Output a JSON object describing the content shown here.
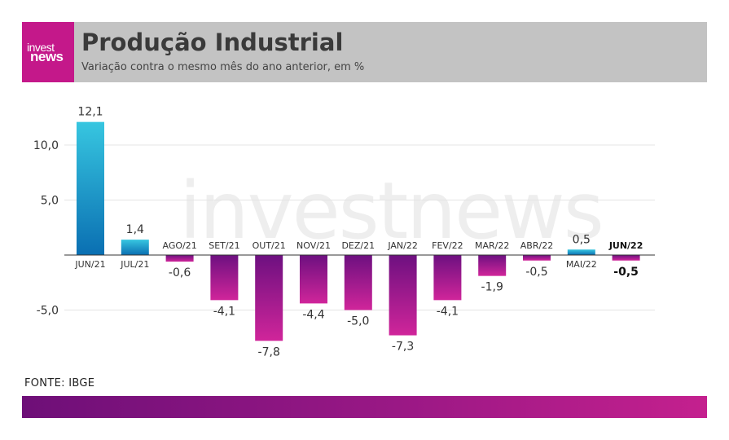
{
  "header": {
    "logo_line1": "invest",
    "logo_line2": "news",
    "title": "Produção Industrial",
    "subtitle": "Variação contra o mesmo mês do ano anterior, em %"
  },
  "watermark": "investnews",
  "source": "FONTE: IBGE",
  "colors": {
    "positive_top": "#37c6e0",
    "positive_bottom": "#0a6fb2",
    "negative_top": "#6d1080",
    "negative_bottom": "#d0259a",
    "header_bg": "#c3c3c3",
    "brand": "#c4188a"
  },
  "chart_data": {
    "type": "bar",
    "title": "Produção Industrial",
    "subtitle": "Variação contra o mesmo mês do ano anterior, em %",
    "categories": [
      "JUN/21",
      "JUL/21",
      "AGO/21",
      "SET/21",
      "OUT/21",
      "NOV/21",
      "DEZ/21",
      "JAN/22",
      "FEV/22",
      "MAR/22",
      "ABR/22",
      "MAI/22",
      "JUN/22"
    ],
    "values": [
      12.1,
      1.4,
      -0.6,
      -4.1,
      -7.8,
      -4.4,
      -5.0,
      -7.3,
      -4.1,
      -1.9,
      -0.5,
      0.5,
      -0.5
    ],
    "value_labels": [
      "12,1",
      "1,4",
      "-0,6",
      "-4,1",
      "-7,8",
      "-4,4",
      "-5,0",
      "-7,3",
      "-4,1",
      "-1,9",
      "-0,5",
      "0,5",
      "-0,5"
    ],
    "highlight_category": "JUN/22",
    "yticks": [
      10,
      5,
      -5
    ],
    "ytick_labels": [
      "10,0",
      "5,0",
      "-5,0"
    ],
    "ylim": [
      -10,
      12.6
    ],
    "grid": true
  }
}
